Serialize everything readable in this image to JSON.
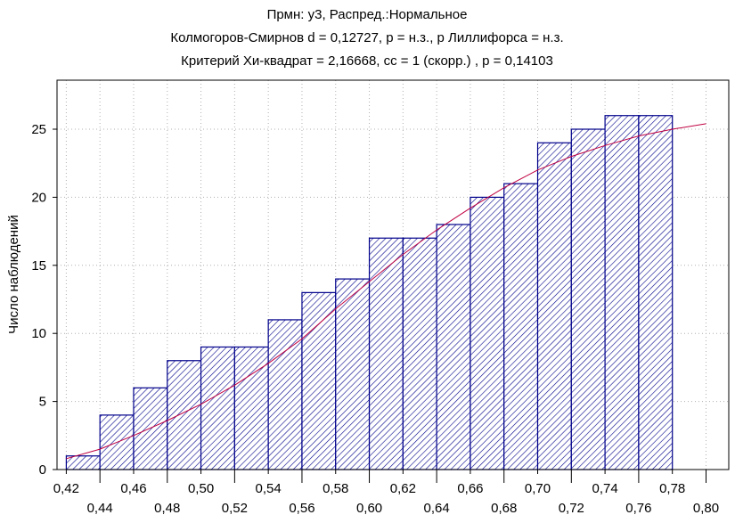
{
  "chart_data": {
    "type": "bar",
    "title_lines": [
      "Прмн: y3, Распред.:Нормальное",
      "Колмогоров-Смирнов d = 0,12727, p = н.з., p Лиллифорса = н.з.",
      "Критерий Хи-квадрат = 2,16668, cc = 1 (скорр.) , p = 0,14103"
    ],
    "ylabel": "Число наблюдений",
    "xlabel": "",
    "xlim": [
      0.42,
      0.8
    ],
    "ylim": [
      0,
      28
    ],
    "bin_width": 0.02,
    "bins": [
      {
        "x": 0.43,
        "value": 1
      },
      {
        "x": 0.45,
        "value": 4
      },
      {
        "x": 0.47,
        "value": 6
      },
      {
        "x": 0.49,
        "value": 8
      },
      {
        "x": 0.51,
        "value": 9
      },
      {
        "x": 0.53,
        "value": 9
      },
      {
        "x": 0.55,
        "value": 11
      },
      {
        "x": 0.57,
        "value": 13
      },
      {
        "x": 0.59,
        "value": 14
      },
      {
        "x": 0.61,
        "value": 17
      },
      {
        "x": 0.63,
        "value": 17
      },
      {
        "x": 0.65,
        "value": 18
      },
      {
        "x": 0.67,
        "value": 20
      },
      {
        "x": 0.69,
        "value": 21
      },
      {
        "x": 0.71,
        "value": 24
      },
      {
        "x": 0.73,
        "value": 25
      },
      {
        "x": 0.75,
        "value": 26
      },
      {
        "x": 0.77,
        "value": 26
      }
    ],
    "x_ticks_upper": [
      "0,42",
      "0,46",
      "0,50",
      "0,54",
      "0,58",
      "0,62",
      "0,66",
      "0,70",
      "0,74",
      "0,78"
    ],
    "x_ticks_lower": [
      "0,44",
      "0,48",
      "0,52",
      "0,56",
      "0,60",
      "0,64",
      "0,68",
      "0,72",
      "0,76",
      "0,80"
    ],
    "y_ticks": [
      "0",
      "5",
      "10",
      "15",
      "20",
      "25"
    ],
    "y_tick_values": [
      0,
      5,
      10,
      15,
      20,
      25
    ],
    "fit_curve": {
      "type": "cumulative-normal",
      "points": [
        [
          0.42,
          0.8
        ],
        [
          0.44,
          1.5
        ],
        [
          0.46,
          2.5
        ],
        [
          0.48,
          3.6
        ],
        [
          0.5,
          4.8
        ],
        [
          0.52,
          6.2
        ],
        [
          0.54,
          7.8
        ],
        [
          0.56,
          9.6
        ],
        [
          0.58,
          11.8
        ],
        [
          0.6,
          13.8
        ],
        [
          0.62,
          15.8
        ],
        [
          0.64,
          17.6
        ],
        [
          0.66,
          19.2
        ],
        [
          0.68,
          20.7
        ],
        [
          0.7,
          22.0
        ],
        [
          0.72,
          23.0
        ],
        [
          0.74,
          23.8
        ],
        [
          0.76,
          24.5
        ],
        [
          0.78,
          25.0
        ],
        [
          0.8,
          25.4
        ]
      ],
      "color": "#c00040"
    },
    "grid": true,
    "bar_color": "#00008b",
    "bar_fill": "hatched"
  }
}
